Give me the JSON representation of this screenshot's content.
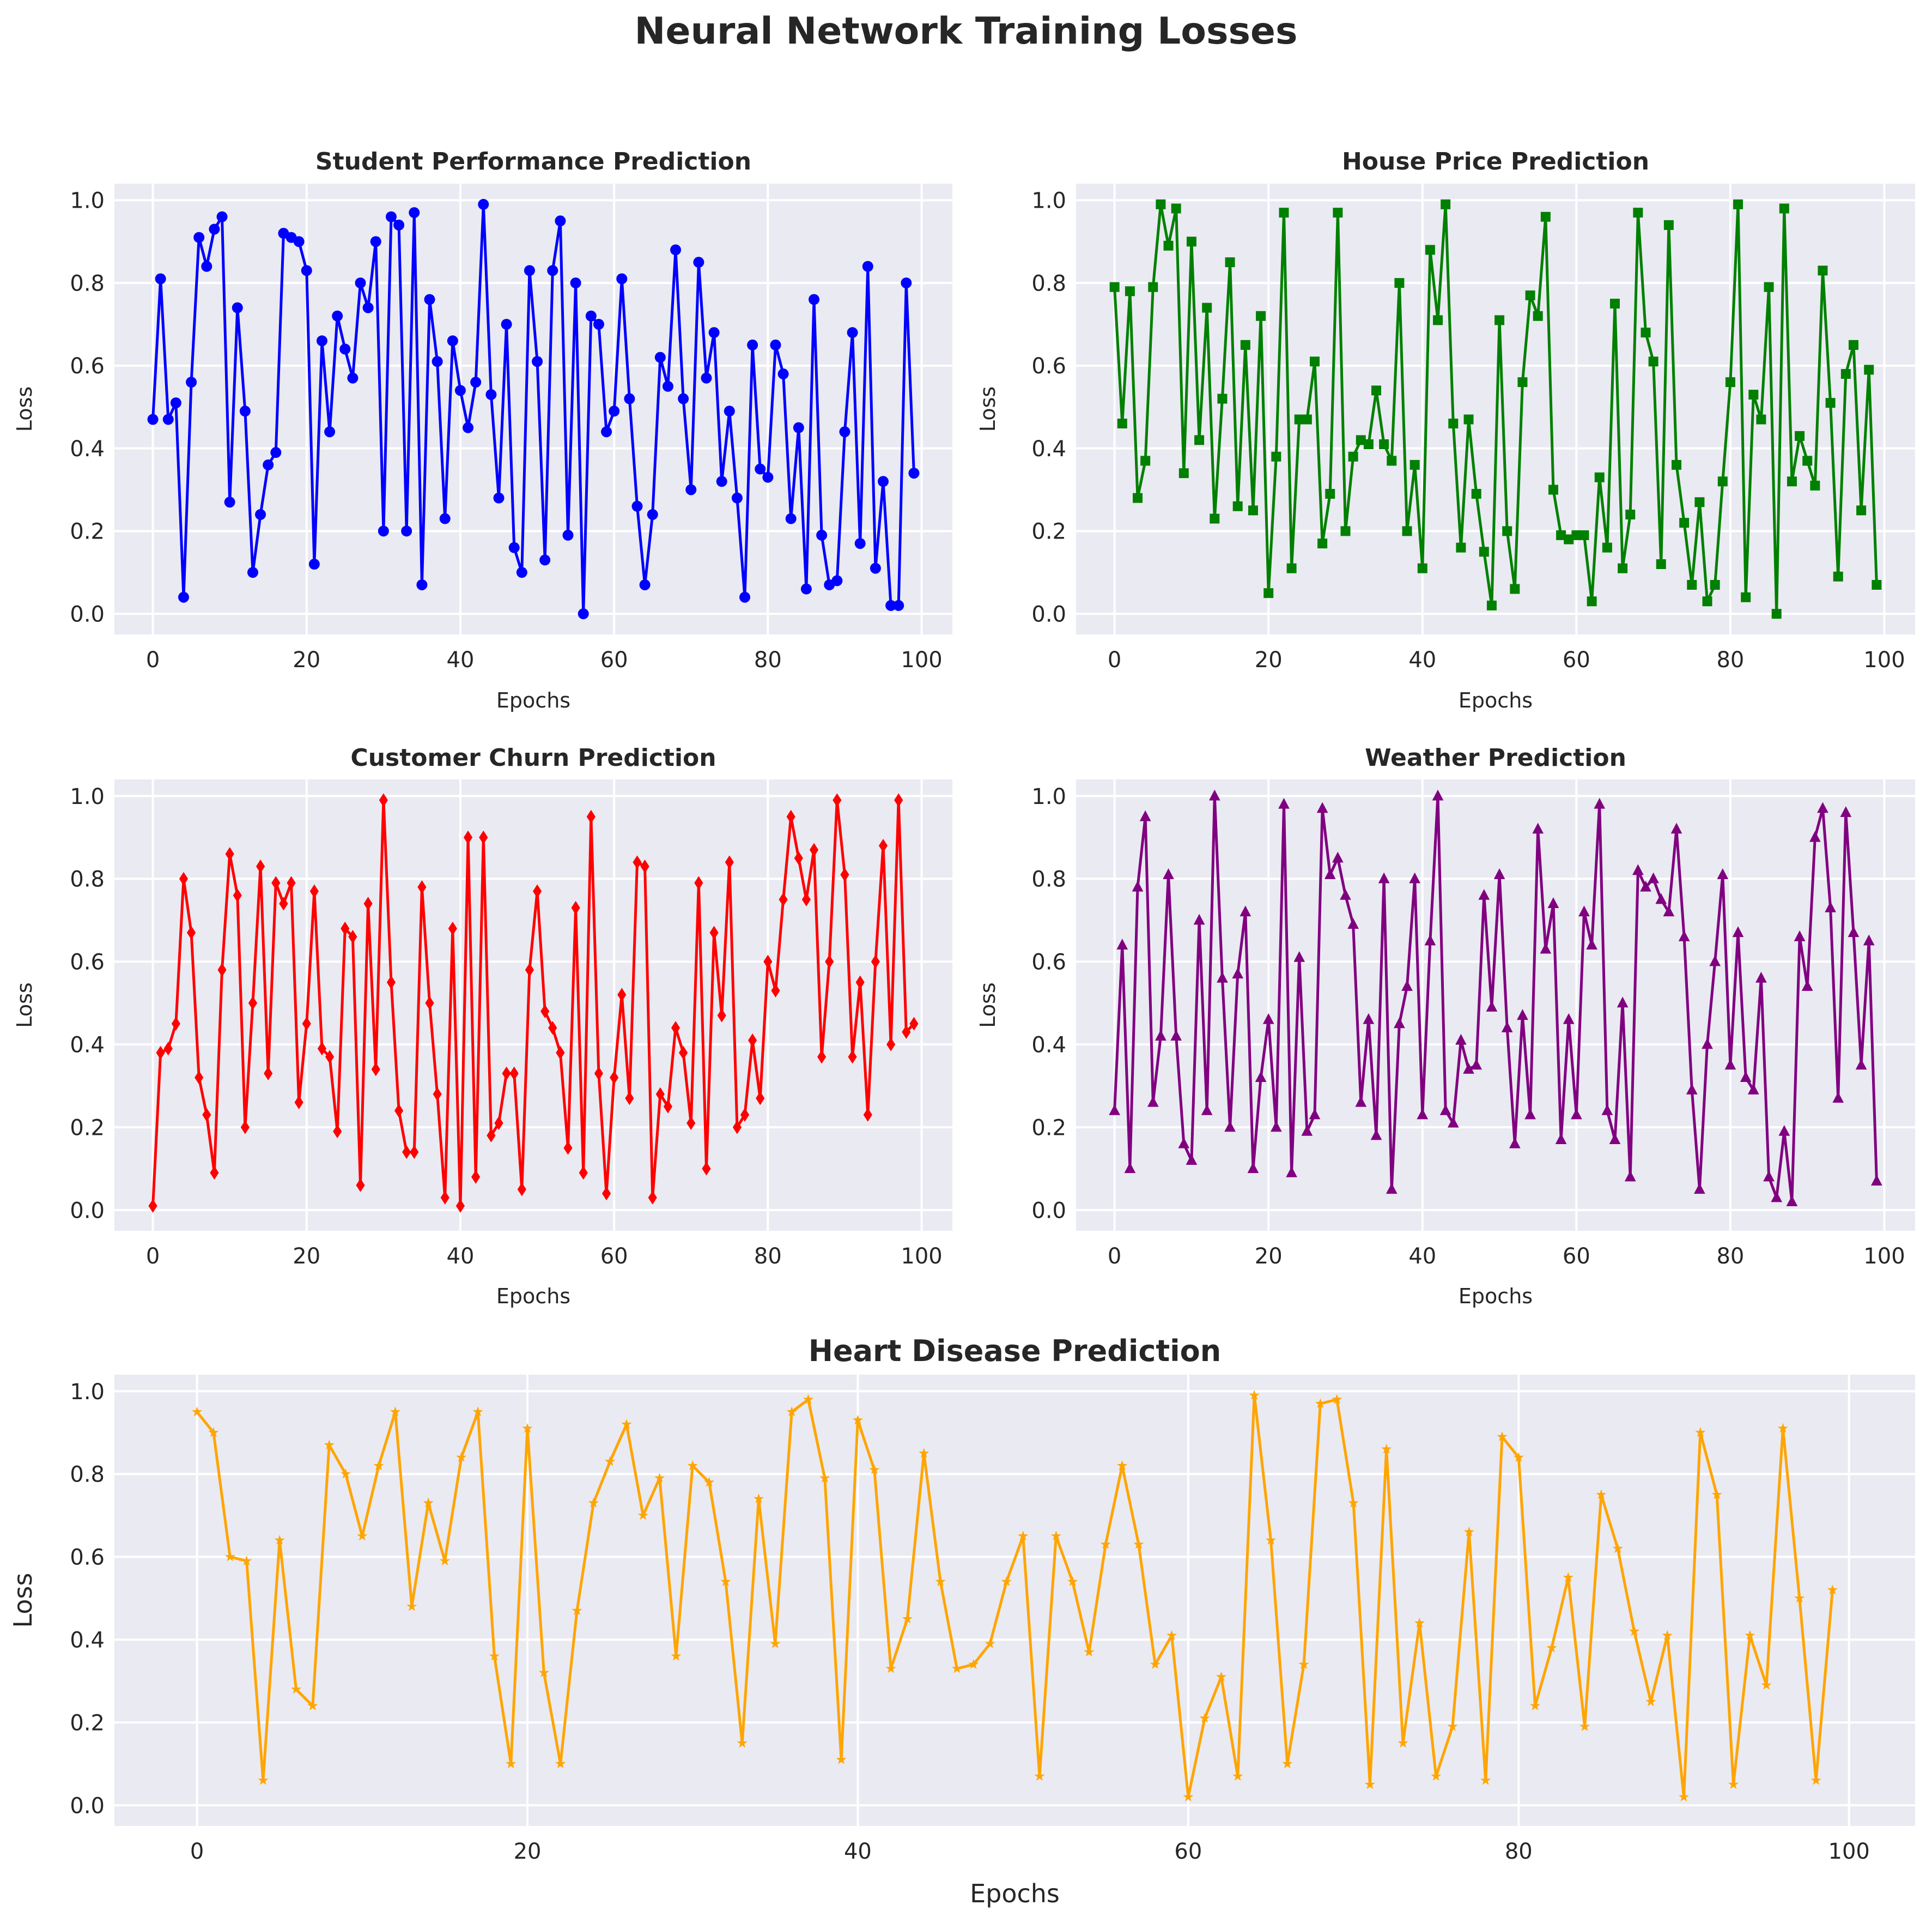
{
  "figure": {
    "title": "Neural Network Training Losses"
  },
  "chart_data": [
    {
      "type": "line",
      "title": "Student Performance Prediction",
      "xlabel": "Epochs",
      "ylabel": "Loss",
      "xlim": [
        -5,
        104
      ],
      "ylim": [
        -0.05,
        1.04
      ],
      "grid": true,
      "color": "#0000ff",
      "marker": "circle",
      "xticks": [
        "0",
        "20",
        "40",
        "60",
        "80",
        "100"
      ],
      "yticks": [
        "0.0",
        "0.2",
        "0.4",
        "0.6",
        "0.8",
        "1.0"
      ],
      "x_start": 0,
      "values": [
        0.47,
        0.81,
        0.47,
        0.51,
        0.04,
        0.56,
        0.91,
        0.84,
        0.93,
        0.96,
        0.27,
        0.74,
        0.49,
        0.1,
        0.24,
        0.36,
        0.39,
        0.92,
        0.91,
        0.9,
        0.83,
        0.12,
        0.66,
        0.44,
        0.72,
        0.64,
        0.57,
        0.8,
        0.74,
        0.9,
        0.2,
        0.96,
        0.94,
        0.2,
        0.97,
        0.07,
        0.76,
        0.61,
        0.23,
        0.66,
        0.54,
        0.45,
        0.56,
        0.99,
        0.53,
        0.28,
        0.7,
        0.16,
        0.1,
        0.83,
        0.61,
        0.13,
        0.83,
        0.95,
        0.19,
        0.8,
        0.0,
        0.72,
        0.7,
        0.44,
        0.49,
        0.81,
        0.52,
        0.26,
        0.07,
        0.24,
        0.62,
        0.55,
        0.88,
        0.52,
        0.3,
        0.85,
        0.57,
        0.68,
        0.32,
        0.49,
        0.28,
        0.04,
        0.65,
        0.35,
        0.33,
        0.65,
        0.58,
        0.23,
        0.45,
        0.06,
        0.76,
        0.19,
        0.07,
        0.08,
        0.44,
        0.68,
        0.17,
        0.84,
        0.11,
        0.32,
        0.02,
        0.02,
        0.8,
        0.34
      ]
    },
    {
      "type": "line",
      "title": "House Price Prediction",
      "xlabel": "Epochs",
      "ylabel": "Loss",
      "xlim": [
        -5,
        104
      ],
      "ylim": [
        -0.05,
        1.04
      ],
      "grid": true,
      "color": "#008000",
      "marker": "square",
      "xticks": [
        "0",
        "20",
        "40",
        "60",
        "80",
        "100"
      ],
      "yticks": [
        "0.0",
        "0.2",
        "0.4",
        "0.6",
        "0.8",
        "1.0"
      ],
      "x_start": 0,
      "values": [
        0.79,
        0.46,
        0.78,
        0.28,
        0.37,
        0.79,
        0.99,
        0.89,
        0.98,
        0.34,
        0.9,
        0.42,
        0.74,
        0.23,
        0.52,
        0.85,
        0.26,
        0.65,
        0.25,
        0.72,
        0.05,
        0.38,
        0.97,
        0.11,
        0.47,
        0.47,
        0.61,
        0.17,
        0.29,
        0.97,
        0.2,
        0.38,
        0.42,
        0.41,
        0.54,
        0.41,
        0.37,
        0.8,
        0.2,
        0.36,
        0.11,
        0.88,
        0.71,
        0.99,
        0.46,
        0.16,
        0.47,
        0.29,
        0.15,
        0.02,
        0.71,
        0.2,
        0.06,
        0.56,
        0.77,
        0.72,
        0.96,
        0.3,
        0.19,
        0.18,
        0.19,
        0.19,
        0.03,
        0.33,
        0.16,
        0.75,
        0.11,
        0.24,
        0.97,
        0.68,
        0.61,
        0.12,
        0.94,
        0.36,
        0.22,
        0.07,
        0.27,
        0.03,
        0.07,
        0.32,
        0.56,
        0.99,
        0.04,
        0.53,
        0.47,
        0.79,
        0.0,
        0.98,
        0.32,
        0.43,
        0.37,
        0.31,
        0.83,
        0.51,
        0.09,
        0.58,
        0.65,
        0.25,
        0.59,
        0.07
      ]
    },
    {
      "type": "line",
      "title": "Customer Churn Prediction",
      "xlabel": "Epochs",
      "ylabel": "Loss",
      "xlim": [
        -5,
        104
      ],
      "ylim": [
        -0.05,
        1.04
      ],
      "grid": true,
      "color": "#ff0000",
      "marker": "diamond",
      "xticks": [
        "0",
        "20",
        "40",
        "60",
        "80",
        "100"
      ],
      "yticks": [
        "0.0",
        "0.2",
        "0.4",
        "0.6",
        "0.8",
        "1.0"
      ],
      "x_start": 0,
      "values": [
        0.01,
        0.38,
        0.39,
        0.45,
        0.8,
        0.67,
        0.32,
        0.23,
        0.09,
        0.58,
        0.86,
        0.76,
        0.2,
        0.5,
        0.83,
        0.33,
        0.79,
        0.74,
        0.79,
        0.26,
        0.45,
        0.77,
        0.39,
        0.37,
        0.19,
        0.68,
        0.66,
        0.06,
        0.74,
        0.34,
        0.99,
        0.55,
        0.24,
        0.14,
        0.14,
        0.78,
        0.5,
        0.28,
        0.03,
        0.68,
        0.01,
        0.9,
        0.08,
        0.9,
        0.18,
        0.21,
        0.33,
        0.33,
        0.05,
        0.58,
        0.77,
        0.48,
        0.44,
        0.38,
        0.15,
        0.73,
        0.09,
        0.95,
        0.33,
        0.04,
        0.32,
        0.52,
        0.27,
        0.84,
        0.83,
        0.03,
        0.28,
        0.25,
        0.44,
        0.38,
        0.21,
        0.79,
        0.1,
        0.67,
        0.47,
        0.84,
        0.2,
        0.23,
        0.41,
        0.27,
        0.6,
        0.53,
        0.75,
        0.95,
        0.85,
        0.75,
        0.87,
        0.37,
        0.6,
        0.99,
        0.81,
        0.37,
        0.55,
        0.23,
        0.6,
        0.88,
        0.4,
        0.99,
        0.43,
        0.45
      ]
    },
    {
      "type": "line",
      "title": "Weather Prediction",
      "xlabel": "Epochs",
      "ylabel": "Loss",
      "xlim": [
        -5,
        104
      ],
      "ylim": [
        -0.05,
        1.04
      ],
      "grid": true,
      "color": "#800080",
      "marker": "triangle",
      "xticks": [
        "0",
        "20",
        "40",
        "60",
        "80",
        "100"
      ],
      "yticks": [
        "0.0",
        "0.2",
        "0.4",
        "0.6",
        "0.8",
        "1.0"
      ],
      "x_start": 0,
      "values": [
        0.24,
        0.64,
        0.1,
        0.78,
        0.95,
        0.26,
        0.42,
        0.81,
        0.42,
        0.16,
        0.12,
        0.7,
        0.24,
        1.0,
        0.56,
        0.2,
        0.57,
        0.72,
        0.1,
        0.32,
        0.46,
        0.2,
        0.98,
        0.09,
        0.61,
        0.19,
        0.23,
        0.97,
        0.81,
        0.85,
        0.76,
        0.69,
        0.26,
        0.46,
        0.18,
        0.8,
        0.05,
        0.45,
        0.54,
        0.8,
        0.23,
        0.65,
        1.0,
        0.24,
        0.21,
        0.41,
        0.34,
        0.35,
        0.76,
        0.49,
        0.81,
        0.44,
        0.16,
        0.47,
        0.23,
        0.92,
        0.63,
        0.74,
        0.17,
        0.46,
        0.23,
        0.72,
        0.64,
        0.98,
        0.24,
        0.17,
        0.5,
        0.08,
        0.82,
        0.78,
        0.8,
        0.75,
        0.72,
        0.92,
        0.66,
        0.29,
        0.05,
        0.4,
        0.6,
        0.81,
        0.35,
        0.67,
        0.32,
        0.29,
        0.56,
        0.08,
        0.03,
        0.19,
        0.02,
        0.66,
        0.54,
        0.9,
        0.97,
        0.73,
        0.27,
        0.96,
        0.67,
        0.35,
        0.65,
        0.07
      ]
    },
    {
      "type": "line",
      "title": "Heart Disease Prediction",
      "xlabel": "Epochs",
      "ylabel": "Loss",
      "xlim": [
        -5,
        104
      ],
      "ylim": [
        -0.05,
        1.04
      ],
      "grid": true,
      "color": "#ffa500",
      "marker": "star",
      "xticks": [
        "0",
        "20",
        "40",
        "60",
        "80",
        "100"
      ],
      "yticks": [
        "0.0",
        "0.2",
        "0.4",
        "0.6",
        "0.8",
        "1.0"
      ],
      "x_start": 0,
      "values": [
        0.95,
        0.9,
        0.6,
        0.59,
        0.06,
        0.64,
        0.28,
        0.24,
        0.87,
        0.8,
        0.65,
        0.82,
        0.95,
        0.48,
        0.73,
        0.59,
        0.84,
        0.95,
        0.36,
        0.1,
        0.91,
        0.32,
        0.1,
        0.47,
        0.73,
        0.83,
        0.92,
        0.7,
        0.79,
        0.36,
        0.82,
        0.78,
        0.54,
        0.15,
        0.74,
        0.39,
        0.95,
        0.98,
        0.79,
        0.11,
        0.93,
        0.81,
        0.33,
        0.45,
        0.85,
        0.54,
        0.33,
        0.34,
        0.39,
        0.54,
        0.65,
        0.07,
        0.65,
        0.54,
        0.37,
        0.63,
        0.82,
        0.63,
        0.34,
        0.41,
        0.02,
        0.21,
        0.31,
        0.07,
        0.99,
        0.64,
        0.1,
        0.34,
        0.97,
        0.98,
        0.73,
        0.05,
        0.86,
        0.15,
        0.44,
        0.07,
        0.19,
        0.66,
        0.06,
        0.89,
        0.84,
        0.24,
        0.38,
        0.55,
        0.19,
        0.75,
        0.62,
        0.42,
        0.25,
        0.41,
        0.02,
        0.9,
        0.75,
        0.05,
        0.41,
        0.29,
        0.91,
        0.5,
        0.06,
        0.52
      ]
    }
  ]
}
